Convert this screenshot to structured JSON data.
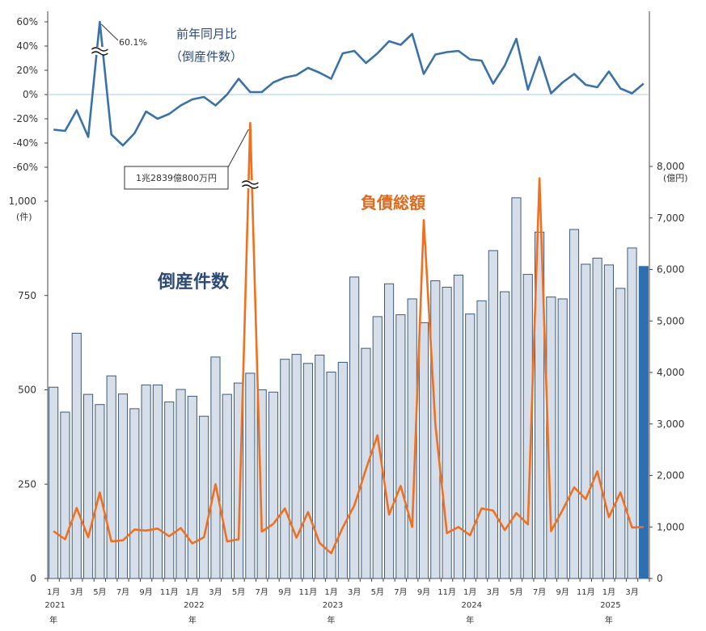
{
  "chart_data": {
    "type": "bar",
    "labels": {
      "yoy_title_line1": "前年同月比",
      "yoy_title_line2": "（倒産件数）",
      "yoy_peak_label": "60.1%",
      "count_series_label": "倒産件数",
      "debt_series_label": "負債総額",
      "debt_peak_label": "1兆2839億800万円",
      "left_unit": "(件)",
      "right_unit": "(億円)"
    },
    "months": [
      "2021-01",
      "2021-02",
      "2021-03",
      "2021-04",
      "2021-05",
      "2021-06",
      "2021-07",
      "2021-08",
      "2021-09",
      "2021-10",
      "2021-11",
      "2021-12",
      "2022-01",
      "2022-02",
      "2022-03",
      "2022-04",
      "2022-05",
      "2022-06",
      "2022-07",
      "2022-08",
      "2022-09",
      "2022-10",
      "2022-11",
      "2022-12",
      "2023-01",
      "2023-02",
      "2023-03",
      "2023-04",
      "2023-05",
      "2023-06",
      "2023-07",
      "2023-08",
      "2023-09",
      "2023-10",
      "2023-11",
      "2023-12",
      "2024-01",
      "2024-02",
      "2024-03",
      "2024-04",
      "2024-05",
      "2024-06",
      "2024-07",
      "2024-08",
      "2024-09",
      "2024-10",
      "2024-11",
      "2024-12",
      "2025-01",
      "2025-02",
      "2025-03",
      "2025-04"
    ],
    "x_tick_labels": [
      "1月",
      "",
      "3月",
      "",
      "5月",
      "",
      "7月",
      "",
      "9月",
      "",
      "11月",
      "",
      "1月",
      "",
      "3月",
      "",
      "5月",
      "",
      "7月",
      "",
      "9月",
      "",
      "11月",
      "",
      "1月",
      "",
      "3月",
      "",
      "5月",
      "",
      "7月",
      "",
      "9月",
      "",
      "11月",
      "",
      "1月",
      "",
      "3月",
      "",
      "5月",
      "",
      "7月",
      "",
      "9月",
      "",
      "11月",
      "",
      "1月",
      "",
      "3月",
      ""
    ],
    "year_labels": [
      {
        "index": 0,
        "year": "2021",
        "suffix": "年"
      },
      {
        "index": 12,
        "year": "2022",
        "suffix": "年"
      },
      {
        "index": 24,
        "year": "2023",
        "suffix": "年"
      },
      {
        "index": 36,
        "year": "2024",
        "suffix": "年"
      },
      {
        "index": 48,
        "year": "2025",
        "suffix": "年"
      }
    ],
    "bankruptcy_count": [
      507,
      441,
      650,
      488,
      461,
      537,
      489,
      450,
      513,
      513,
      468,
      501,
      483,
      430,
      587,
      488,
      518,
      544,
      500,
      494,
      581,
      594,
      570,
      592,
      547,
      573,
      799,
      610,
      694,
      781,
      699,
      741,
      678,
      789,
      772,
      804,
      701,
      736,
      869,
      760,
      1009,
      806,
      918,
      746,
      741,
      925,
      833,
      849,
      831,
      769,
      876,
      827
    ],
    "debt_total_oku": [
      920,
      760,
      1370,
      800,
      1670,
      720,
      740,
      950,
      930,
      970,
      820,
      980,
      680,
      800,
      1830,
      720,
      760,
      12839,
      910,
      1060,
      1360,
      790,
      1290,
      690,
      490,
      990,
      1420,
      2120,
      2780,
      1240,
      1800,
      1000,
      6960,
      3000,
      880,
      1000,
      840,
      1360,
      1320,
      940,
      1270,
      1050,
      7770,
      920,
      1330,
      1770,
      1540,
      2080,
      1190,
      1670,
      990,
      1000
    ],
    "yoy_pct": [
      -29,
      -30,
      -13,
      -35,
      60.1,
      -33,
      -42,
      -32,
      -14,
      -20,
      -16,
      -9,
      -4,
      -2,
      -9,
      0,
      13,
      2,
      2,
      10,
      14,
      16,
      22,
      18,
      13,
      34,
      36,
      26,
      34,
      44,
      41,
      50,
      17,
      33,
      35,
      36,
      29,
      28,
      9,
      24,
      46,
      4,
      31,
      1,
      10,
      17,
      8,
      6,
      19,
      5,
      1,
      9
    ],
    "left_axis": {
      "ylim": [
        0,
        1000
      ],
      "ticks": [
        0,
        250,
        500,
        750,
        1000
      ],
      "tick_labels": [
        "0",
        "250",
        "500",
        "750",
        "1,000"
      ]
    },
    "right_axis": {
      "ylim": [
        0,
        8000
      ],
      "ticks": [
        0,
        1000,
        2000,
        3000,
        4000,
        5000,
        6000,
        7000,
        8000
      ],
      "tick_labels": [
        "0",
        "1,000",
        "2,000",
        "3,000",
        "4,000",
        "5,000",
        "6,000",
        "7,000",
        "8,000"
      ]
    },
    "yoy_axis": {
      "ylim": [
        -60,
        60
      ],
      "ticks": [
        -60,
        -40,
        -20,
        0,
        20,
        40,
        60
      ],
      "tick_labels": [
        "-60%",
        "-40%",
        "-20%",
        "0%",
        "20%",
        "40%",
        "60%"
      ]
    },
    "colors": {
      "bar_fill": "#d6dfe9",
      "bar_stroke": "#3f5a78",
      "bar_highlight": "#2e6fb0",
      "debt_line": "#f07020",
      "yoy_line": "#3a72a8",
      "zero_line": "#a8c8e8",
      "label_blue": "#2c4a74",
      "label_orange": "#e06a1c",
      "axis_text": "#333333"
    }
  }
}
